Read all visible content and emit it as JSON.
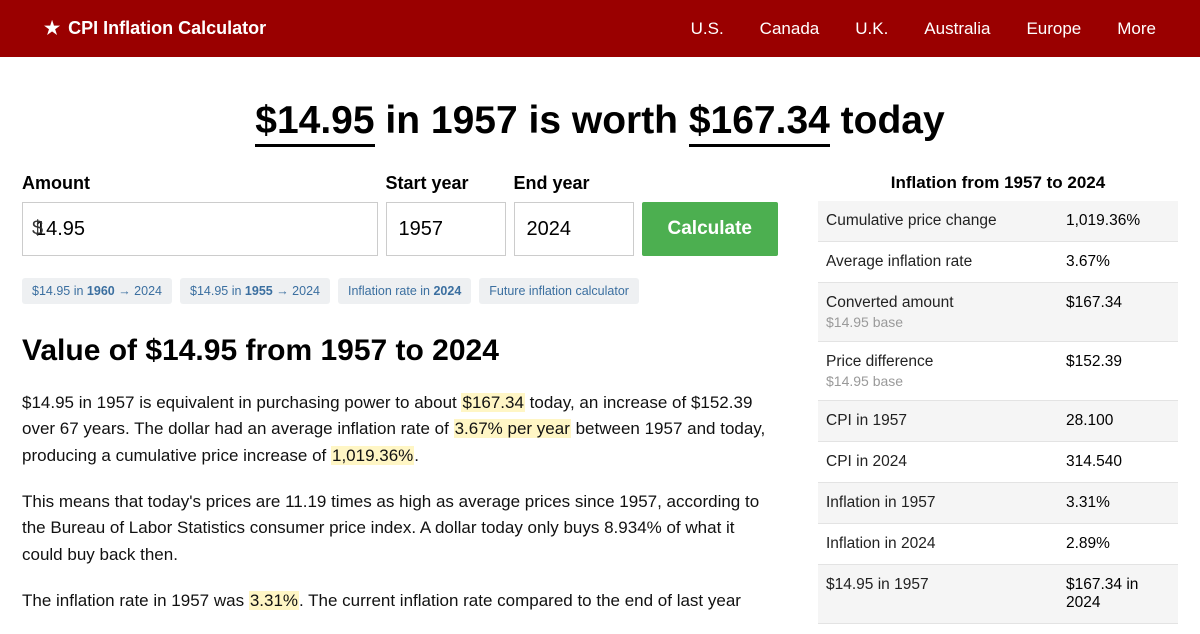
{
  "nav": {
    "brand": "CPI Inflation Calculator",
    "links": [
      "U.S.",
      "Canada",
      "U.K.",
      "Australia",
      "Europe",
      "More"
    ]
  },
  "headline": {
    "amount": "$14.95",
    "mid1": " in 1957 is worth ",
    "result": "$167.34",
    "mid2": " today"
  },
  "form": {
    "amount_label": "Amount",
    "amount_value": "14.95",
    "start_label": "Start year",
    "start_value": "1957",
    "end_label": "End year",
    "end_value": "2024",
    "button": "Calculate"
  },
  "chips": [
    {
      "pre": "$14.95 in ",
      "bold": "1960",
      "post": " → 2024"
    },
    {
      "pre": "$14.95 in ",
      "bold": "1955",
      "post": " → 2024"
    },
    {
      "pre": "Inflation rate in ",
      "bold": "2024",
      "post": ""
    },
    {
      "pre": "Future inflation calculator",
      "bold": "",
      "post": ""
    }
  ],
  "section": {
    "h2": "Value of $14.95 from 1957 to 2024",
    "p1a": "$14.95 in 1957 is equivalent in purchasing power to about ",
    "p1h1": "$167.34",
    "p1b": " today, an increase of $152.39 over 67 years. The dollar had an average inflation rate of ",
    "p1h2": "3.67% per year",
    "p1c": " between 1957 and today, producing a cumulative price increase of ",
    "p1h3": "1,019.36%",
    "p1d": ".",
    "p2": "This means that today's prices are 11.19 times as high as average prices since 1957, according to the Bureau of Labor Statistics consumer price index. A dollar today only buys 8.934% of what it could buy back then.",
    "p3a": "The inflation rate in 1957 was ",
    "p3h1": "3.31%",
    "p3b": ". The current inflation rate compared to the end of last year"
  },
  "stats": {
    "title": "Inflation from 1957 to 2024",
    "rows": [
      {
        "label": "Cumulative price change",
        "sub": "",
        "value": "1,019.36%"
      },
      {
        "label": "Average inflation rate",
        "sub": "",
        "value": "3.67%"
      },
      {
        "label": "Converted amount",
        "sub": "$14.95 base",
        "value": "$167.34"
      },
      {
        "label": "Price difference",
        "sub": "$14.95 base",
        "value": "$152.39"
      },
      {
        "label": "CPI in 1957",
        "sub": "",
        "value": "28.100"
      },
      {
        "label": "CPI in 2024",
        "sub": "",
        "value": "314.540"
      },
      {
        "label": "Inflation in 1957",
        "sub": "",
        "value": "3.31%"
      },
      {
        "label": "Inflation in 2024",
        "sub": "",
        "value": "2.89%"
      },
      {
        "label": "$14.95 in 1957",
        "sub": "",
        "value": "$167.34 in 2024"
      }
    ]
  }
}
